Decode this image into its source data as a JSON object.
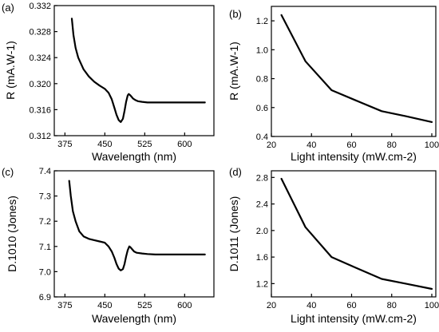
{
  "chart_data": [
    {
      "panel_label": "(a)",
      "type": "line",
      "xlabel": "Wavelength (nm)",
      "ylabel": "R (mA.W-1)",
      "xlim": [
        355,
        655
      ],
      "ylim": [
        0.312,
        0.332
      ],
      "xticks": [
        375,
        450,
        525,
        600
      ],
      "yticks": [
        0.312,
        0.316,
        0.32,
        0.324,
        0.328,
        0.332
      ],
      "ytick_decimals": 3,
      "series": [
        {
          "x": [
            388,
            391,
            395,
            400,
            410,
            420,
            430,
            440,
            450,
            457,
            463,
            468,
            472,
            476,
            480,
            484,
            487,
            490,
            493,
            495,
            498,
            500,
            503,
            507,
            512,
            520,
            530,
            545,
            560,
            580,
            600,
            620,
            638
          ],
          "y": [
            0.33,
            0.3275,
            0.3255,
            0.324,
            0.3222,
            0.3211,
            0.3203,
            0.3197,
            0.3192,
            0.3186,
            0.3176,
            0.3163,
            0.3152,
            0.3144,
            0.3141,
            0.3146,
            0.3158,
            0.3172,
            0.3182,
            0.3184,
            0.3182,
            0.318,
            0.3177,
            0.3175,
            0.3173,
            0.3172,
            0.3171,
            0.3171,
            0.3171,
            0.3171,
            0.3171,
            0.3171,
            0.3171
          ]
        }
      ]
    },
    {
      "panel_label": "(b)",
      "type": "line",
      "xlabel": "Light intensity (mW.cm-2)",
      "ylabel": "R (mA.W-1)",
      "xlim": [
        20,
        102
      ],
      "ylim": [
        0.4,
        1.3
      ],
      "xticks": [
        20,
        40,
        60,
        80,
        100
      ],
      "yticks": [
        0.4,
        0.6,
        0.8,
        1.0,
        1.2
      ],
      "ytick_decimals": 1,
      "series": [
        {
          "x": [
            25,
            37,
            50,
            62,
            75,
            87,
            100
          ],
          "y": [
            1.24,
            0.92,
            0.72,
            0.65,
            0.575,
            0.54,
            0.5
          ]
        }
      ]
    },
    {
      "panel_label": "(c)",
      "type": "line",
      "xlabel": "Wavelength (nm)",
      "ylabel": "D.1010 (Jones)",
      "xlim": [
        355,
        655
      ],
      "ylim": [
        6.9,
        7.4
      ],
      "xticks": [
        375,
        450,
        525,
        600
      ],
      "yticks": [
        6.9,
        7.0,
        7.1,
        7.2,
        7.3,
        7.4
      ],
      "ytick_decimals": 1,
      "series": [
        {
          "x": [
            383,
            386,
            390,
            395,
            402,
            410,
            420,
            430,
            440,
            450,
            457,
            463,
            468,
            472,
            476,
            480,
            484,
            487,
            490,
            493,
            496,
            498,
            501,
            505,
            510,
            520,
            530,
            545,
            560,
            580,
            600,
            620,
            638
          ],
          "y": [
            7.36,
            7.3,
            7.24,
            7.2,
            7.16,
            7.14,
            7.13,
            7.125,
            7.12,
            7.115,
            7.1,
            7.08,
            7.055,
            7.03,
            7.012,
            7.005,
            7.01,
            7.03,
            7.06,
            7.085,
            7.1,
            7.097,
            7.09,
            7.08,
            7.075,
            7.072,
            7.07,
            7.068,
            7.068,
            7.068,
            7.068,
            7.068,
            7.068
          ]
        }
      ]
    },
    {
      "panel_label": "(d)",
      "type": "line",
      "xlabel": "Light intensity (mW.cm-2)",
      "ylabel": "D.1011 (Jones)",
      "xlim": [
        20,
        102
      ],
      "ylim": [
        1.0,
        2.9
      ],
      "xticks": [
        20,
        40,
        60,
        80,
        100
      ],
      "yticks": [
        1.2,
        1.6,
        2.0,
        2.4,
        2.8
      ],
      "ytick_decimals": 1,
      "series": [
        {
          "x": [
            25,
            37,
            50,
            62,
            75,
            87,
            100
          ],
          "y": [
            2.78,
            2.05,
            1.6,
            1.44,
            1.27,
            1.2,
            1.12
          ]
        }
      ]
    }
  ]
}
